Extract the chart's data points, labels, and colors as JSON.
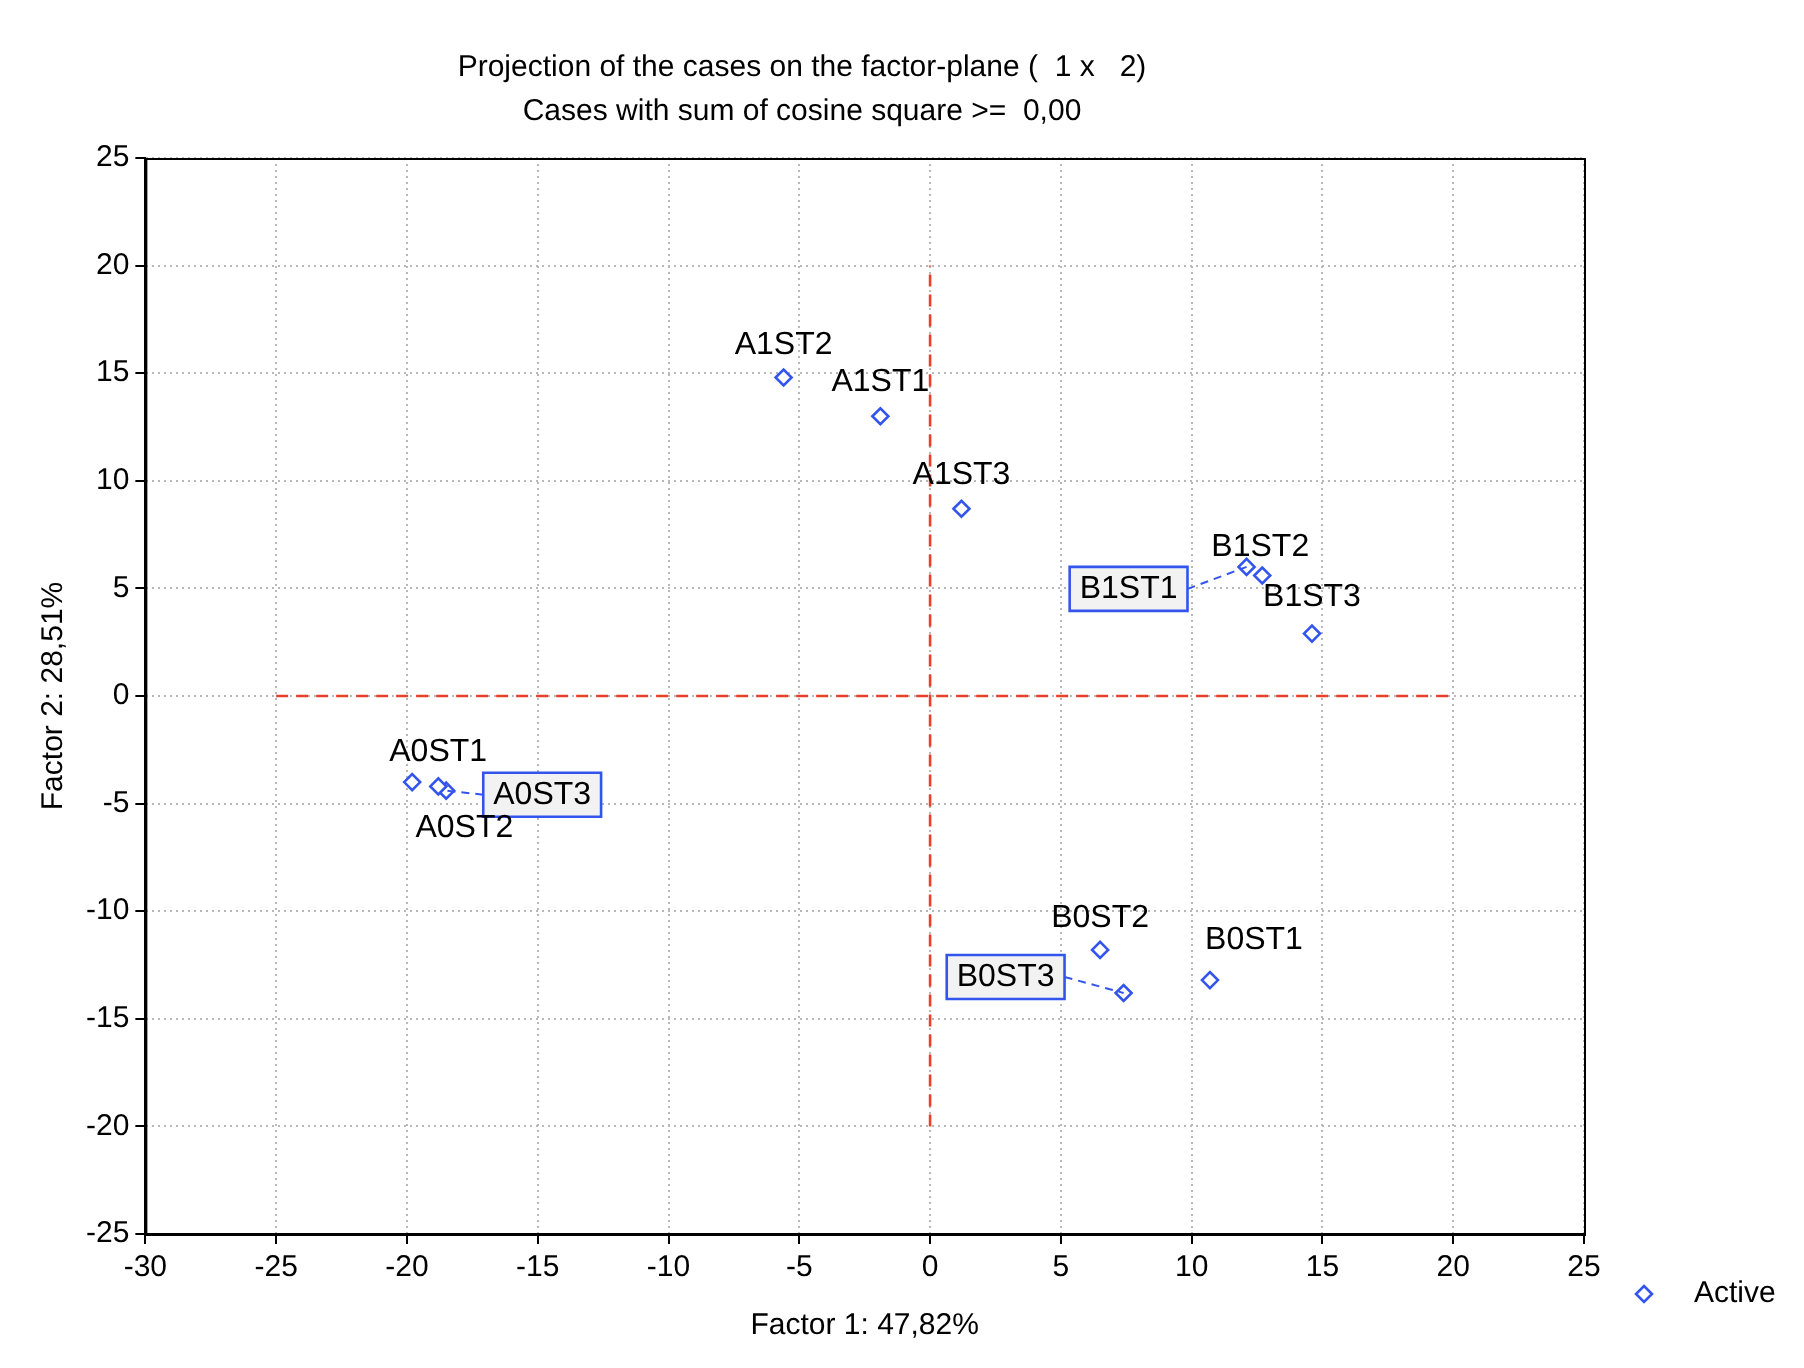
{
  "chart_data": {
    "type": "scatter",
    "title": "Projection of the cases on the factor-plane (  1 x   2)",
    "subtitle": "Cases with sum of cosine square >=  0,00",
    "xlabel": "Factor 1: 47,82%",
    "ylabel": "Factor 2: 28,51%",
    "xlim": [
      -30,
      25
    ],
    "xticks": [
      -30,
      -25,
      -20,
      -15,
      -10,
      -5,
      0,
      5,
      10,
      15,
      20,
      25
    ],
    "ylim": [
      -25,
      25
    ],
    "yticks": [
      -25,
      -20,
      -15,
      -10,
      -5,
      0,
      5,
      10,
      15,
      20,
      25
    ],
    "grid": true,
    "legend": "bottom right",
    "marker": "diamond",
    "series": [
      {
        "name": "Active",
        "color": "#3355ee",
        "x": [
          -5.6,
          -1.9,
          1.2,
          12.7,
          12.1,
          14.6,
          -19.8,
          -18.5,
          -18.8,
          6.5,
          7.4,
          10.7
        ],
        "values": [
          14.8,
          13.0,
          8.7,
          5.6,
          6.0,
          2.9,
          -4.0,
          -4.4,
          -4.2,
          -11.8,
          -13.8,
          -13.2
        ]
      },
      {
        "type": "line",
        "color": "#e8402a",
        "line_style": "dashed",
        "marker": "none",
        "x": [
          -25,
          20
        ],
        "values": [
          0,
          0
        ]
      },
      {
        "type": "line",
        "color": "#e8402a",
        "line_style": "dashed",
        "marker": "none",
        "x": [
          0,
          0
        ],
        "values": [
          -20,
          20
        ]
      }
    ],
    "annotations": [
      {
        "text": "A1ST2",
        "x": -5.6,
        "y": 14.8
      },
      {
        "text": "A1ST1",
        "x": -1.9,
        "y": 13.0
      },
      {
        "text": "A1ST3",
        "x": 1.2,
        "y": 8.7
      },
      {
        "text": "B1ST2",
        "x": 12.7,
        "y": 5.6
      },
      {
        "text": "B1ST1",
        "x": 12.1,
        "y": 6.0
      },
      {
        "text": "B1ST3",
        "x": 14.6,
        "y": 2.9
      },
      {
        "text": "A0ST1",
        "x": -19.8,
        "y": -4.0
      },
      {
        "text": "A0ST3",
        "x": -18.5,
        "y": -4.4
      },
      {
        "text": "A0ST2",
        "x": -18.8,
        "y": -4.2
      },
      {
        "text": "B0ST2",
        "x": 6.5,
        "y": -11.8
      },
      {
        "text": "B0ST3",
        "x": 7.4,
        "y": -13.8
      },
      {
        "text": "B0ST1",
        "x": 10.7,
        "y": -13.2
      }
    ]
  }
}
